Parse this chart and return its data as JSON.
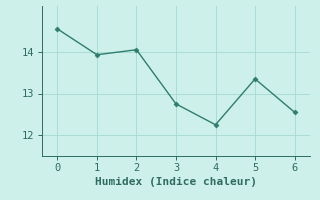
{
  "x": [
    0,
    1,
    2,
    3,
    4,
    5,
    6
  ],
  "y": [
    14.55,
    13.93,
    14.05,
    12.75,
    12.25,
    13.35,
    12.55
  ],
  "line_color": "#2e7d6e",
  "marker": "D",
  "marker_size": 2.5,
  "background_color": "#cef0ea",
  "grid_color": "#a8ddd6",
  "xlabel": "Humidex (Indice chaleur)",
  "xlabel_fontsize": 8,
  "ylim": [
    11.5,
    15.1
  ],
  "xlim": [
    -0.4,
    6.4
  ],
  "yticks": [
    12,
    13,
    14
  ],
  "xticks": [
    0,
    1,
    2,
    3,
    4,
    5,
    6
  ],
  "tick_color": "#2e6b60",
  "axis_color": "#2e6b60",
  "tick_fontsize": 7.5
}
